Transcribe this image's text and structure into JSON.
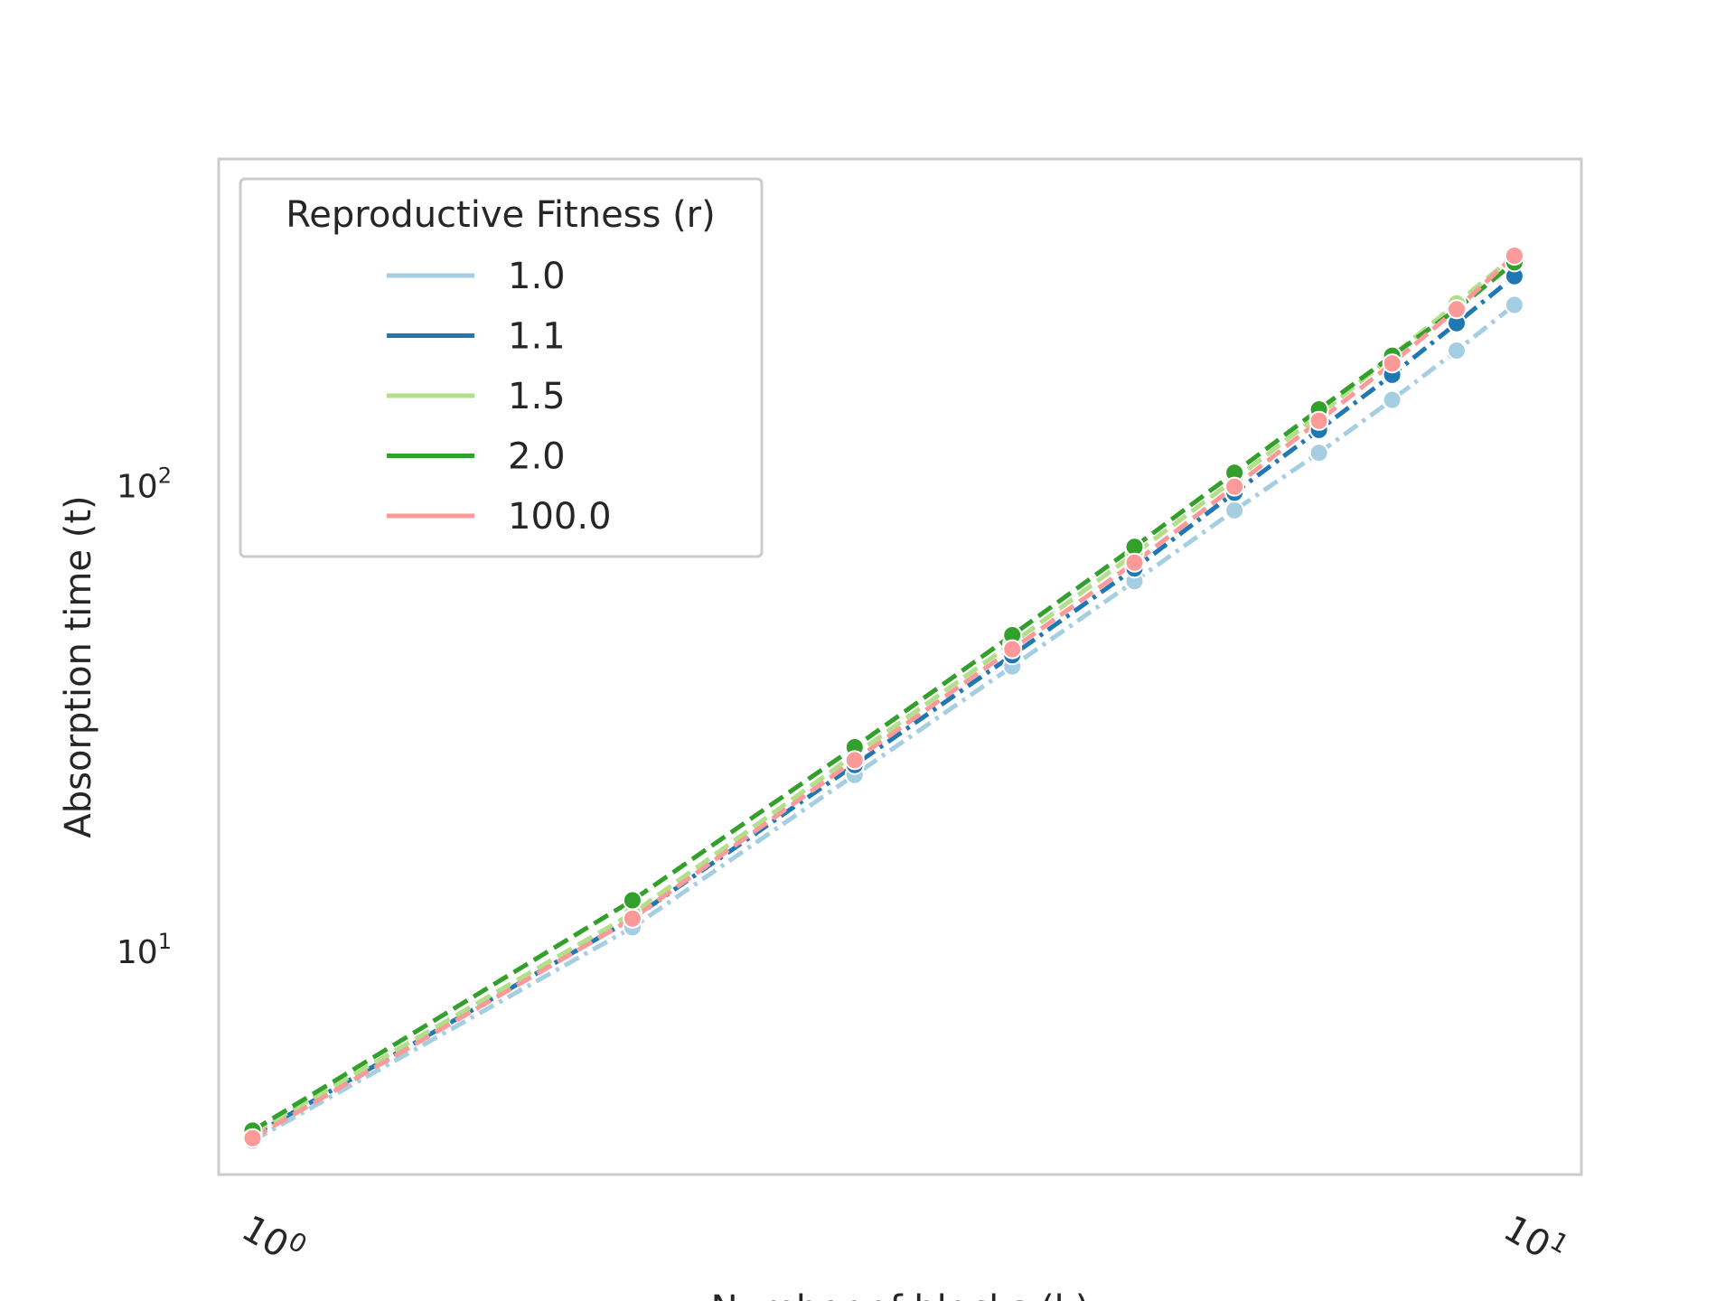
{
  "chart_data": {
    "type": "line",
    "title": "",
    "xlabel": "Number of blocks (k)",
    "ylabel": "Absorption time (t)",
    "xscale": "log",
    "yscale": "log",
    "xlim": [
      0.94,
      11.3
    ],
    "ylim": [
      3.3,
      500
    ],
    "grid": false,
    "x_tick_labels": [
      {
        "value": 1,
        "base": "10",
        "exp": "0"
      },
      {
        "value": 10,
        "base": "10",
        "exp": "1"
      }
    ],
    "y_tick_labels": [
      {
        "value": 10,
        "base": "10",
        "exp": "1"
      },
      {
        "value": 100,
        "base": "10",
        "exp": "2"
      }
    ],
    "x": [
      1,
      2,
      3,
      4,
      5,
      6,
      7,
      8,
      9,
      10
    ],
    "legend": {
      "title": "Reproductive Fitness (r)",
      "placement": "upper left"
    },
    "series": [
      {
        "name": "1.0",
        "color": "#a6cee3",
        "dash": "dashdot",
        "values": [
          3.9,
          11.2,
          23.8,
          40.7,
          62.0,
          88.0,
          117.0,
          152.0,
          194.0,
          243.0
        ]
      },
      {
        "name": "1.1",
        "color": "#1f78b4",
        "dash": "dashdot",
        "values": [
          4.0,
          11.7,
          25.0,
          43.0,
          66.0,
          96.0,
          131.0,
          172.0,
          222.0,
          280.0
        ]
      },
      {
        "name": "1.5",
        "color": "#b2df8a",
        "dash": "dashed",
        "values": [
          4.05,
          12.0,
          26.3,
          45.6,
          71.0,
          102.5,
          141.0,
          189.0,
          245.0,
          310.0
        ]
      },
      {
        "name": "2.0",
        "color": "#33a02c",
        "dash": "dashed",
        "values": [
          4.1,
          12.8,
          27.3,
          47.5,
          73.5,
          106.0,
          145.0,
          189.0,
          238.0,
          300.0
        ]
      },
      {
        "name": "100.0",
        "color": "#fb9a99",
        "dash": "dashed",
        "values": [
          3.95,
          11.7,
          25.6,
          44.3,
          68.0,
          99.0,
          137.0,
          182.0,
          238.0,
          310.0
        ]
      }
    ]
  }
}
